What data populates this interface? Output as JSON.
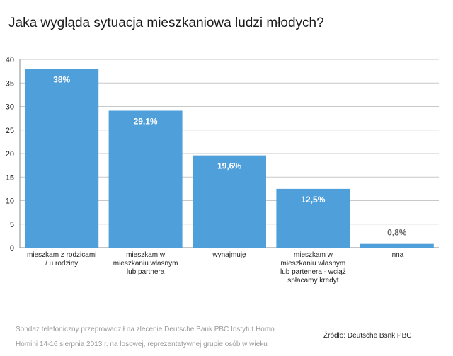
{
  "chart_data": {
    "type": "bar",
    "title": "Jaka wygląda sytuacja mieszkaniowa  ludzi młodych?",
    "xlabel": "",
    "ylabel": "",
    "ylim": [
      0,
      40
    ],
    "yticks": [
      0,
      5,
      10,
      15,
      20,
      25,
      30,
      35,
      40
    ],
    "grid": true,
    "legend": "none",
    "categories": [
      [
        "mieszkam z rodzicami",
        "/ u rodziny"
      ],
      [
        "mieszkam w",
        "mieszkaniu własnym",
        "lub partnera"
      ],
      [
        "wynajmuję"
      ],
      [
        "mieszkam w",
        "mieszkaniu własnym",
        "lub partenera - wciąż",
        "spłacamy kredyt"
      ],
      [
        "inna"
      ]
    ],
    "values": [
      38,
      29.1,
      19.6,
      12.5,
      0.8
    ],
    "data_labels": [
      "38%",
      "29,1%",
      "19,6%",
      "12,5%",
      "0,8%"
    ],
    "bar_color": "#4f9fdb",
    "label_color_inside": "#ffffff",
    "label_color_outside": "#666666"
  },
  "footer": {
    "note_lines": [
      "Sondaż telefoniczny przeprowadził na zlecenie Deutsche Bank PBC Instytut Homo",
      "Homini 14-16 sierpnia 2013 r. na losowej, reprezentatywnej grupie osób w wieku"
    ],
    "source": "Źródło: Deutsche Bsnk PBC"
  }
}
